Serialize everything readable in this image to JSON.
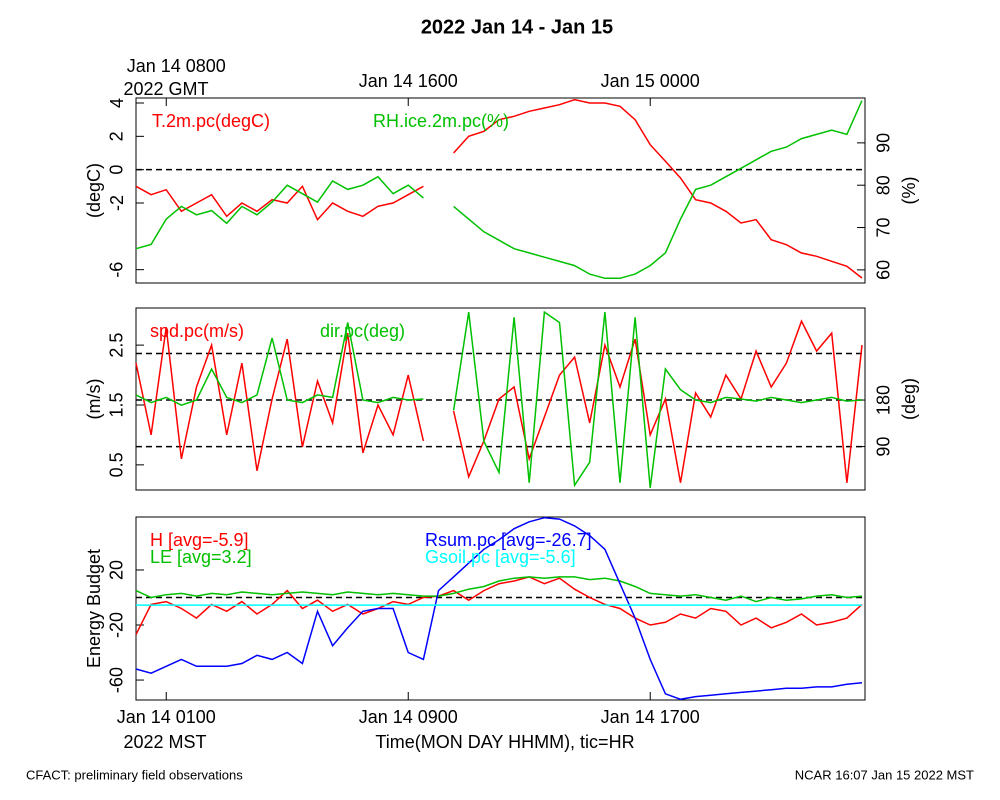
{
  "title": "2022 Jan 14 - Jan 15",
  "footer_left": "CFACT: preliminary field observations",
  "footer_right": "NCAR 16:07 Jan 15 2022 MST",
  "chart_data": [
    {
      "type": "line",
      "x": [
        0,
        0.5,
        1,
        1.5,
        2,
        2.5,
        3,
        3.5,
        4,
        4.5,
        5,
        5.5,
        6,
        6.5,
        7,
        7.5,
        8,
        8.5,
        9,
        9.5,
        10,
        10.5,
        11,
        11.5,
        12,
        12.5,
        13,
        13.5,
        14,
        14.5,
        15,
        15.5,
        16,
        16.5,
        17,
        17.5,
        18,
        18.5,
        19,
        19.5,
        20,
        20.5,
        21,
        21.5,
        22,
        22.5,
        23,
        23.5,
        24
      ],
      "xlim": [
        0,
        24.1
      ],
      "x2ticks": [
        {
          "value": 1,
          "label": "Jan 14 0800"
        },
        {
          "value": 9,
          "label": "Jan 14 1600"
        },
        {
          "value": 17,
          "label": "Jan 15 0000"
        }
      ],
      "x2label": "2022 GMT",
      "ylabel": "(degC)",
      "ylim": [
        -6.8,
        4.3
      ],
      "yticks": [
        -6,
        -2,
        0,
        2,
        4
      ],
      "y2label": "(%)",
      "y2lim": [
        56.9,
        100.6
      ],
      "y2ticks": [
        60,
        70,
        80,
        90
      ],
      "hlines": [
        0
      ],
      "series": [
        {
          "name": "T.2m.pc(degC)",
          "color": "#ff0000",
          "values": [
            -1.0,
            -1.5,
            -1.2,
            -2.5,
            -2.0,
            -1.5,
            -2.8,
            -2.0,
            -2.5,
            -1.8,
            -2.0,
            -1.0,
            -3.0,
            -2.0,
            -2.5,
            -2.8,
            -2.2,
            -2.0,
            -1.5,
            -1.0,
            null,
            1.0,
            2.0,
            2.3,
            3.0,
            3.2,
            3.5,
            3.7,
            3.9,
            4.2,
            4.0,
            4.0,
            3.8,
            3.0,
            1.5,
            0.5,
            -0.5,
            -1.8,
            -2.0,
            -2.5,
            -3.2,
            -3.0,
            -4.2,
            -4.5,
            -5.0,
            -5.2,
            -5.5,
            -5.8,
            -6.5
          ]
        },
        {
          "name": "RH.ice.2m.pc(%)",
          "color": "#00c000",
          "axis": "y2",
          "values": [
            65,
            66,
            72,
            75,
            73,
            74,
            71,
            75,
            73,
            76,
            80,
            78,
            76,
            81,
            79,
            80,
            82,
            78,
            80,
            77,
            null,
            75,
            72,
            69,
            67,
            65,
            64,
            63,
            62,
            61,
            59,
            58,
            58,
            59,
            61,
            64,
            72,
            79,
            80,
            82,
            84,
            86,
            88,
            89,
            91,
            92,
            93,
            92,
            100
          ]
        }
      ]
    },
    {
      "type": "line",
      "x": [
        0,
        0.5,
        1,
        1.5,
        2,
        2.5,
        3,
        3.5,
        4,
        4.5,
        5,
        5.5,
        6,
        6.5,
        7,
        7.5,
        8,
        8.5,
        9,
        9.5,
        10,
        10.5,
        11,
        11.5,
        12,
        12.5,
        13,
        13.5,
        14,
        14.5,
        15,
        15.5,
        16,
        16.5,
        17,
        17.5,
        18,
        18.5,
        19,
        19.5,
        20,
        20.5,
        21,
        21.5,
        22,
        22.5,
        23,
        23.5,
        24
      ],
      "xlim": [
        0,
        24.1
      ],
      "ylabel": "(m/s)",
      "ylim": [
        0.08,
        3.12
      ],
      "yticks": [
        0.5,
        1.5,
        2.5
      ],
      "y2label": "(deg)",
      "y2lim": [
        6,
        358
      ],
      "y2ticks": [
        90,
        180
      ],
      "hlines_y2": [
        90,
        180,
        270
      ],
      "series": [
        {
          "name": "spd.pc(m/s)",
          "color": "#ff0000",
          "values": [
            2.2,
            1.0,
            2.8,
            0.6,
            1.8,
            2.5,
            1.0,
            2.2,
            0.4,
            1.6,
            2.6,
            0.8,
            1.9,
            1.2,
            2.7,
            0.7,
            1.5,
            1.0,
            2.0,
            0.9,
            null,
            1.4,
            0.3,
            0.9,
            1.6,
            1.8,
            0.6,
            1.3,
            2.0,
            2.3,
            1.2,
            2.5,
            1.8,
            2.6,
            1.0,
            1.6,
            0.2,
            1.7,
            1.3,
            2.0,
            1.6,
            2.4,
            1.8,
            2.2,
            2.9,
            2.4,
            2.7,
            0.2,
            2.5
          ]
        },
        {
          "name": "dir.pc(deg)",
          "color": "#00c000",
          "axis": "y2",
          "values": [
            190,
            175,
            185,
            170,
            180,
            240,
            185,
            175,
            190,
            300,
            180,
            175,
            190,
            185,
            330,
            180,
            175,
            185,
            180,
            182,
            null,
            160,
            350,
            100,
            40,
            340,
            20,
            350,
            330,
            15,
            60,
            350,
            20,
            340,
            10,
            240,
            200,
            180,
            175,
            185,
            182,
            178,
            185,
            180,
            175,
            180,
            185,
            178,
            180
          ]
        }
      ]
    },
    {
      "type": "line",
      "x": [
        0,
        0.5,
        1,
        1.5,
        2,
        2.5,
        3,
        3.5,
        4,
        4.5,
        5,
        5.5,
        6,
        6.5,
        7,
        7.5,
        8,
        8.5,
        9,
        9.5,
        10,
        10.5,
        11,
        11.5,
        12,
        12.5,
        13,
        13.5,
        14,
        14.5,
        15,
        15.5,
        16,
        16.5,
        17,
        17.5,
        18,
        18.5,
        19,
        19.5,
        20,
        20.5,
        21,
        21.5,
        22,
        22.5,
        23,
        23.5,
        24
      ],
      "xlim": [
        0,
        24.1
      ],
      "xticks": [
        {
          "value": 1,
          "label": "Jan 14 0100"
        },
        {
          "value": 9,
          "label": "Jan 14 0900"
        },
        {
          "value": 17,
          "label": "Jan 14 1700"
        }
      ],
      "xtimezone": "2022 MST",
      "xlabel": "Time(MON DAY HHMM), tic=HR",
      "ylabel": "Energy Budget",
      "ylim": [
        -74.5,
        58.5
      ],
      "yticks": [
        -60,
        -20,
        20
      ],
      "hlines": [
        0
      ],
      "series": [
        {
          "name": "H [avg=-5.9]",
          "color": "#ff0000",
          "values": [
            -27,
            -5,
            -3,
            -8,
            -15,
            -5,
            -10,
            -3,
            -12,
            -5,
            5,
            -8,
            -2,
            -10,
            -5,
            -12,
            -8,
            -3,
            -5,
            0,
            1,
            5,
            -2,
            5,
            10,
            12,
            15,
            10,
            14,
            6,
            0,
            -5,
            -8,
            -15,
            -20,
            -18,
            -12,
            -15,
            -8,
            -10,
            -20,
            -15,
            -22,
            -18,
            -12,
            -20,
            -18,
            -15,
            -5
          ]
        },
        {
          "name": "LE [avg=3.2]",
          "color": "#00c000",
          "values": [
            5,
            0,
            2,
            3,
            1,
            3,
            2,
            4,
            3,
            2,
            3,
            4,
            3,
            2,
            4,
            3,
            2,
            3,
            2,
            1,
            1,
            3,
            6,
            8,
            12,
            14,
            15,
            14,
            15,
            15,
            13,
            14,
            12,
            8,
            3,
            2,
            1,
            2,
            0,
            -2,
            1,
            -3,
            0,
            -2,
            -1,
            1,
            2,
            0,
            1
          ]
        },
        {
          "name": "Rsum.pc [avg=-26.7]",
          "color": "#0000ff",
          "values": [
            -52,
            -55,
            -50,
            -45,
            -50,
            -50,
            -50,
            -48,
            -42,
            -45,
            -40,
            -48,
            -10,
            -35,
            -22,
            -10,
            -8,
            -8,
            -40,
            -45,
            5,
            15,
            25,
            35,
            42,
            50,
            55,
            58,
            57,
            52,
            45,
            35,
            10,
            -15,
            -45,
            -70,
            -74,
            -72,
            -71,
            -70,
            -69,
            -68,
            -67,
            -66,
            -66,
            -65,
            -65,
            -63,
            -62
          ]
        },
        {
          "name": "Gsoil.pc [avg=-5.6]",
          "color": "#00ffff",
          "values": [
            -5.5,
            -5.5,
            -5.5,
            -5.5,
            -5.5,
            -5.5,
            -5.5,
            -5.5,
            -5.5,
            -5.5,
            -5.5,
            -5.5,
            -5.5,
            -5.5,
            -5.5,
            -5.5,
            -5.5,
            -5.5,
            -5.5,
            -5.5,
            -5.5,
            -5.5,
            -5.5,
            -5.5,
            -5.5,
            -5.5,
            -5.5,
            -5.5,
            -5.5,
            -5.5,
            -5.5,
            -5.5,
            -5.5,
            -5.5,
            -5.5,
            -5.5,
            -5.5,
            -5.5,
            -5.5,
            -5.5,
            -5.5,
            -5.5,
            -5.5,
            -5.5,
            -5.5,
            -5.5,
            -5.5,
            -5.5,
            -5.5
          ]
        }
      ]
    }
  ]
}
